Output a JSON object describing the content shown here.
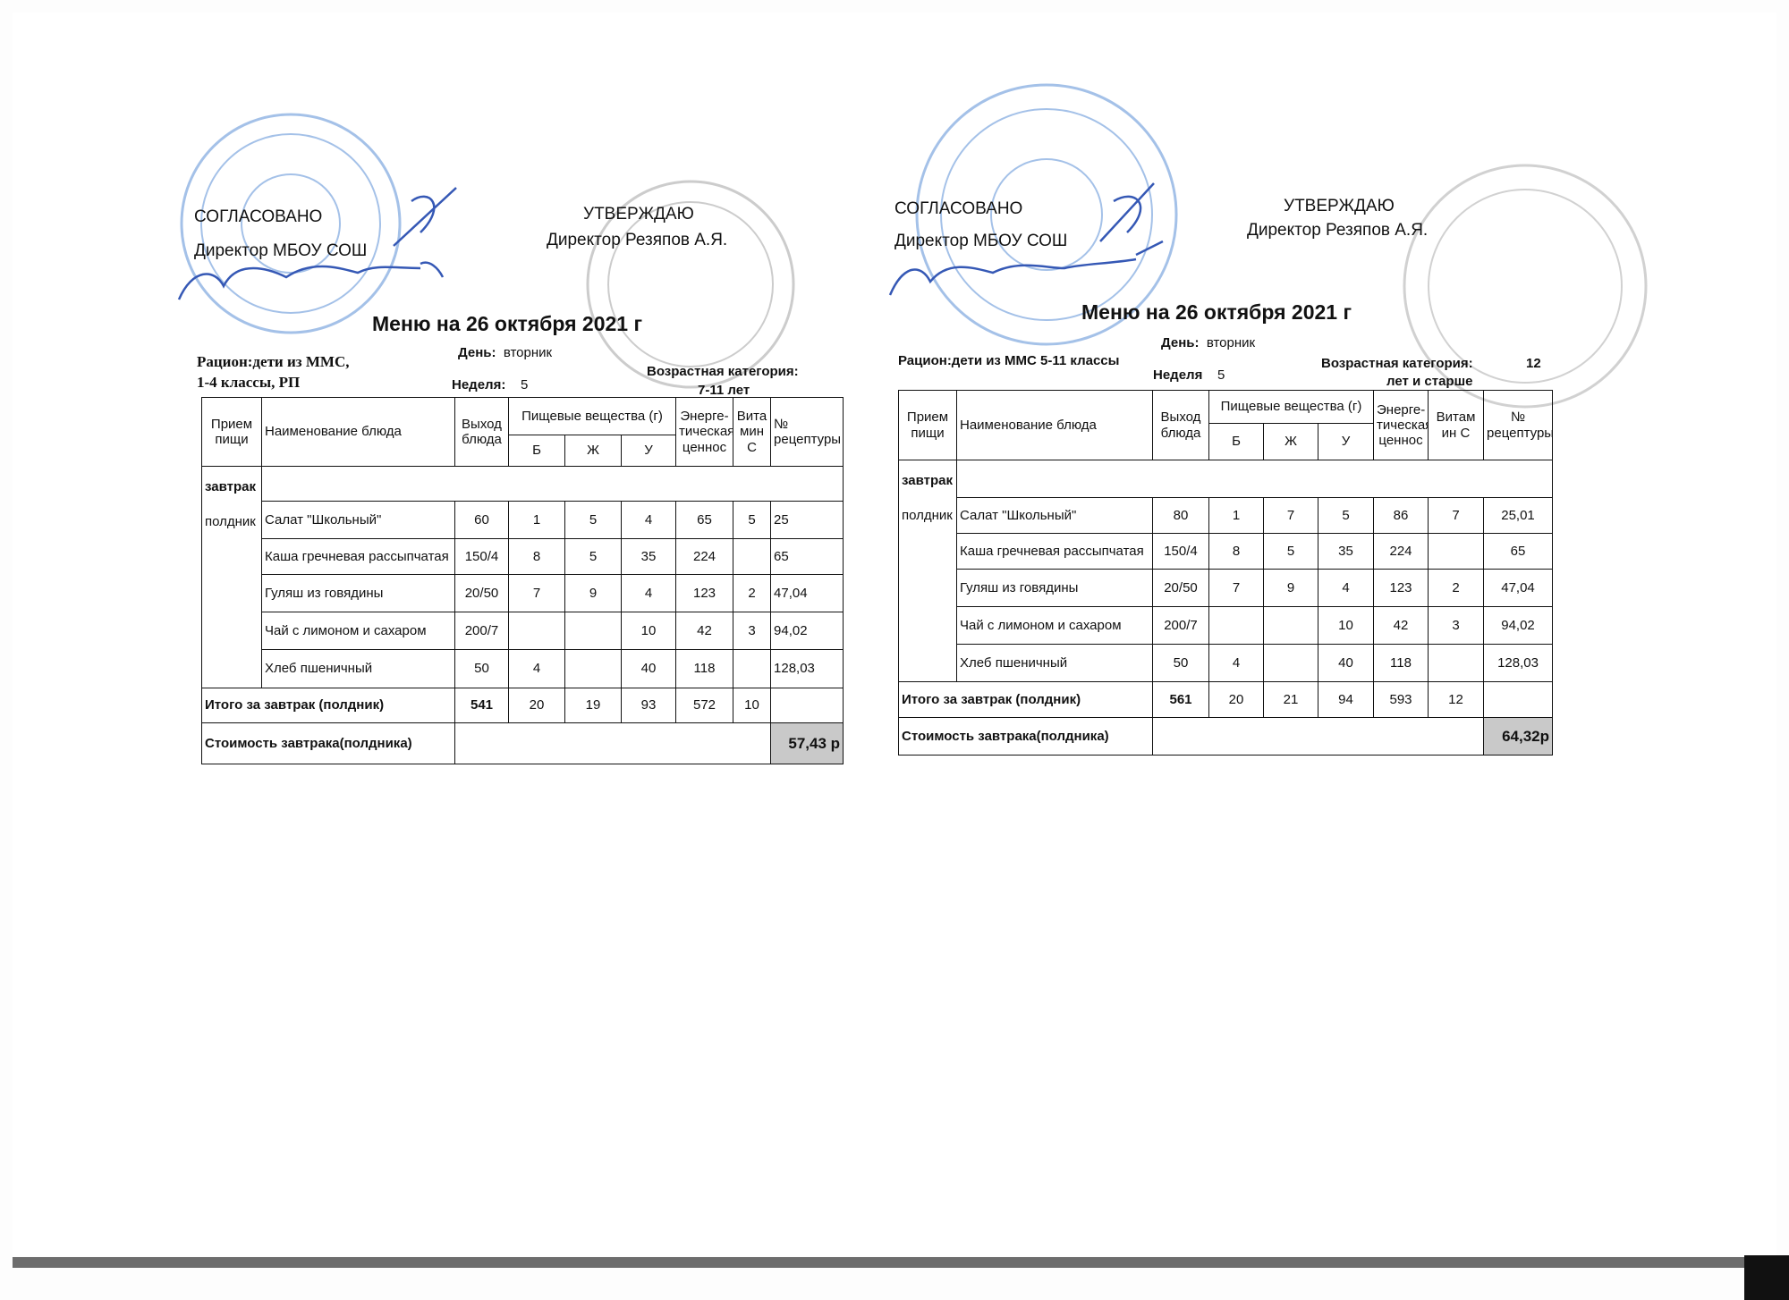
{
  "colors": {
    "stamp_blue": "#5b8fd6",
    "stamp_gray": "#9a9a9a",
    "signature": "#3558b5",
    "cost_bg": "#c9c9c9"
  },
  "menus": [
    {
      "agreed": "СОГЛАСОВАНО",
      "agreed_by": "Директор МБОУ СОШ",
      "approved": "УТВЕРЖДАЮ",
      "approved_by": "Директор Резяпов А.Я.",
      "title": "Меню на 26 октября 2021 г",
      "ration_label": "Рацион:дети из ММС,",
      "ration_line2": "1-4 классы, РП",
      "day_label": "День:",
      "day_value": "вторник",
      "week_label": "Неделя:",
      "week_value": "5",
      "age_label": "Возрастная категория:",
      "age_value": "7-11 лет",
      "header": {
        "meal": "Прием пищи",
        "dish": "Наименование блюда",
        "yield": "Выход блюда",
        "nutrients": "Пищевые вещества (г)",
        "b": "Б",
        "zh": "Ж",
        "u": "У",
        "energy": "Энерге-тическая ценнос",
        "vitamin": "Вита мин С",
        "recipe": "№ рецептуры"
      },
      "meal_labels": [
        "завтрак",
        "полдник"
      ],
      "rows": [
        [
          "Салат \"Школьный\"",
          "60",
          "1",
          "5",
          "4",
          "65",
          "5",
          "25"
        ],
        [
          "Каша гречневая рассыпчатая",
          "150/4",
          "8",
          "5",
          "35",
          "224",
          "",
          "65"
        ],
        [
          "Гуляш из говядины",
          "20/50",
          "7",
          "9",
          "4",
          "123",
          "2",
          "47,04"
        ],
        [
          "Чай с лимоном и сахаром",
          "200/7",
          "",
          "",
          "10",
          "42",
          "3",
          "94,02"
        ],
        [
          "Хлеб пшеничный",
          "50",
          "4",
          "",
          "40",
          "118",
          "",
          "128,03"
        ]
      ],
      "total_label": "Итого за завтрак (полдник)",
      "total": [
        "541",
        "20",
        "19",
        "93",
        "572",
        "10",
        ""
      ],
      "cost_label": "Стоимость завтрака(полдника)",
      "cost_value": "57,43 р"
    },
    {
      "agreed": "СОГЛАСОВАНО",
      "agreed_by": "Директор МБОУ СОШ",
      "approved": "УТВЕРЖДАЮ",
      "approved_by": "Директор Резяпов А.Я.",
      "title": "Меню на 26 октября 2021 г",
      "ration_label": "Рацион:дети из ММС 5-11 классы",
      "day_label": "День:",
      "day_value": "вторник",
      "week_label": "Неделя",
      "week_value": "5",
      "age_label": "Возрастная категория:",
      "age_value_num": "12",
      "age_value": "лет и старше",
      "header": {
        "meal": "Прием пищи",
        "dish": "Наименование блюда",
        "yield": "Выход блюда",
        "nutrients": "Пищевые вещества (г)",
        "b": "Б",
        "zh": "Ж",
        "u": "У",
        "energy": "Энерге-тическая ценнос",
        "vitamin": "Витам ин С",
        "recipe": "№ рецептуры"
      },
      "meal_labels": [
        "завтрак",
        "полдник"
      ],
      "rows": [
        [
          "Салат \"Школьный\"",
          "80",
          "1",
          "7",
          "5",
          "86",
          "7",
          "25,01"
        ],
        [
          "Каша гречневая рассыпчатая",
          "150/4",
          "8",
          "5",
          "35",
          "224",
          "",
          "65"
        ],
        [
          "Гуляш из говядины",
          "20/50",
          "7",
          "9",
          "4",
          "123",
          "2",
          "47,04"
        ],
        [
          "Чай с лимоном и сахаром",
          "200/7",
          "",
          "",
          "10",
          "42",
          "3",
          "94,02"
        ],
        [
          "Хлеб пшеничный",
          "50",
          "4",
          "",
          "40",
          "118",
          "",
          "128,03"
        ]
      ],
      "total_label": "Итого за завтрак (полдник)",
      "total": [
        "561",
        "20",
        "21",
        "94",
        "593",
        "12",
        ""
      ],
      "cost_label": "Стоимость завтрака(полдника)",
      "cost_value": "64,32р"
    }
  ]
}
